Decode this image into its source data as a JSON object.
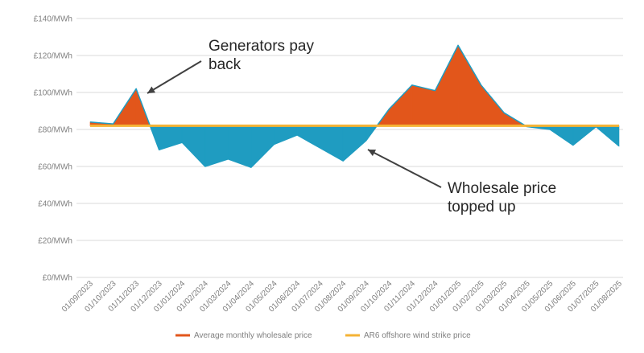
{
  "chart_data": {
    "type": "area",
    "categories": [
      "01/09/2023",
      "01/10/2023",
      "01/11/2023",
      "01/12/2023",
      "01/01/2024",
      "01/02/2024",
      "01/03/2024",
      "01/04/2024",
      "01/05/2024",
      "01/06/2024",
      "01/07/2024",
      "01/08/2024",
      "01/09/2024",
      "01/10/2024",
      "01/11/2024",
      "01/12/2024",
      "01/01/2025",
      "01/02/2025",
      "01/03/2025",
      "01/04/2025",
      "01/05/2025",
      "01/06/2025",
      "01/07/2025",
      "01/08/2025"
    ],
    "series": [
      {
        "name": "Average monthly wholesale price",
        "color": "#e2561b",
        "values": [
          84,
          83,
          102,
          69,
          73,
          60,
          64,
          59.5,
          72,
          77,
          70,
          63,
          74,
          91,
          104,
          101,
          125.5,
          104,
          89,
          81.5,
          80,
          71.5,
          81.5,
          71
        ]
      },
      {
        "name": "AR6 offshore wind strike price",
        "color": "#f5b335",
        "values": [
          82,
          82,
          82,
          82,
          82,
          82,
          82,
          82,
          82,
          82,
          82,
          82,
          82,
          82,
          82,
          82,
          82,
          82,
          82,
          82,
          82,
          82,
          82,
          82
        ]
      }
    ],
    "ylim": [
      0,
      140
    ],
    "yticks": [
      0,
      20,
      40,
      60,
      80,
      100,
      120,
      140
    ],
    "ytick_labels": [
      "£0/MWh",
      "£20/MWh",
      "£40/MWh",
      "£60/MWh",
      "£80/MWh",
      "£100/MWh",
      "£120/MWh",
      "£140/MWh"
    ],
    "fill_colors": {
      "above": "#e2561b",
      "below": "#1f9cc1"
    },
    "annotations": [
      {
        "lines": [
          "Generators pay",
          "back"
        ],
        "target_index": 2
      },
      {
        "lines": [
          "Wholesale price",
          "topped up"
        ],
        "target_index": 12
      }
    ],
    "legend_position": "bottom",
    "grid": true
  }
}
